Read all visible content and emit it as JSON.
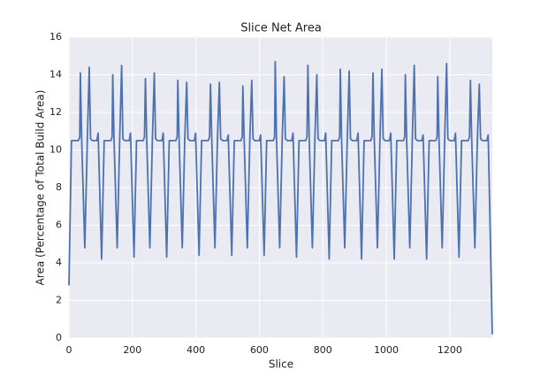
{
  "chart_data": {
    "type": "line",
    "title": "Slice Net Area",
    "xlabel": "Slice",
    "ylabel": "Area (Percentage of Total Build Area)",
    "color": "#4c72b0",
    "grid": true,
    "xlim": [
      0,
      1334
    ],
    "ylim": [
      0,
      16
    ],
    "xticks": [
      0,
      200,
      400,
      600,
      800,
      1000,
      1200
    ],
    "yticks": [
      0,
      2,
      4,
      6,
      8,
      10,
      12,
      14,
      16
    ],
    "x": [
      0,
      8,
      30,
      34,
      36,
      40,
      50,
      58,
      64,
      68,
      74,
      88,
      92,
      103,
      111,
      132,
      136,
      138,
      142,
      152,
      160,
      166,
      170,
      176,
      190,
      194,
      205,
      213,
      234,
      238,
      241,
      245,
      255,
      263,
      269,
      273,
      279,
      293,
      297,
      308,
      316,
      337,
      341,
      343,
      347,
      357,
      365,
      371,
      375,
      381,
      395,
      399,
      410,
      418,
      439,
      443,
      446,
      450,
      460,
      468,
      474,
      478,
      484,
      498,
      502,
      513,
      521,
      542,
      546,
      548,
      552,
      562,
      570,
      576,
      580,
      586,
      600,
      604,
      615,
      623,
      644,
      648,
      650,
      654,
      664,
      672,
      678,
      682,
      688,
      702,
      706,
      717,
      725,
      746,
      750,
      753,
      757,
      767,
      775,
      781,
      785,
      791,
      805,
      809,
      820,
      828,
      849,
      853,
      855,
      859,
      869,
      877,
      883,
      887,
      893,
      907,
      911,
      922,
      930,
      951,
      955,
      958,
      962,
      972,
      980,
      986,
      990,
      996,
      1010,
      1014,
      1025,
      1033,
      1054,
      1058,
      1060,
      1064,
      1074,
      1082,
      1088,
      1092,
      1098,
      1112,
      1116,
      1127,
      1135,
      1156,
      1160,
      1162,
      1166,
      1176,
      1184,
      1190,
      1194,
      1200,
      1214,
      1218,
      1229,
      1237,
      1258,
      1262,
      1265,
      1269,
      1279,
      1287,
      1293,
      1297,
      1303,
      1317,
      1321,
      1334
    ],
    "values": [
      2.8,
      10.5,
      10.5,
      10.7,
      14.1,
      10.6,
      4.8,
      10.6,
      14.4,
      10.6,
      10.5,
      10.5,
      10.9,
      4.2,
      10.5,
      10.5,
      10.7,
      14.0,
      10.6,
      4.8,
      10.6,
      14.5,
      10.6,
      10.5,
      10.5,
      10.9,
      4.3,
      10.5,
      10.5,
      10.7,
      13.8,
      10.6,
      4.8,
      10.6,
      14.1,
      10.6,
      10.5,
      10.5,
      10.9,
      4.3,
      10.5,
      10.5,
      10.7,
      13.7,
      10.6,
      4.8,
      10.6,
      13.6,
      10.6,
      10.5,
      10.5,
      10.9,
      4.4,
      10.5,
      10.5,
      10.7,
      13.5,
      10.6,
      4.8,
      10.6,
      13.6,
      10.6,
      10.5,
      10.5,
      10.8,
      4.4,
      10.5,
      10.5,
      10.7,
      13.4,
      10.6,
      4.8,
      10.6,
      13.7,
      10.6,
      10.5,
      10.5,
      10.8,
      4.4,
      10.5,
      10.5,
      10.7,
      14.7,
      10.6,
      4.8,
      10.6,
      13.9,
      10.6,
      10.5,
      10.5,
      10.9,
      4.3,
      10.5,
      10.5,
      10.7,
      14.5,
      10.6,
      4.8,
      10.6,
      14.0,
      10.6,
      10.5,
      10.5,
      10.9,
      4.2,
      10.5,
      10.5,
      10.7,
      14.3,
      10.6,
      4.8,
      10.6,
      14.2,
      10.6,
      10.5,
      10.5,
      10.9,
      4.2,
      10.5,
      10.5,
      10.7,
      14.1,
      10.6,
      4.8,
      10.6,
      14.3,
      10.6,
      10.5,
      10.5,
      10.9,
      4.2,
      10.5,
      10.5,
      10.7,
      14.0,
      10.6,
      4.8,
      10.6,
      14.5,
      10.6,
      10.5,
      10.5,
      10.8,
      4.2,
      10.5,
      10.5,
      10.7,
      13.9,
      10.6,
      4.8,
      10.6,
      14.6,
      10.6,
      10.5,
      10.5,
      10.9,
      4.3,
      10.5,
      10.5,
      10.7,
      13.7,
      10.6,
      4.8,
      10.6,
      13.5,
      10.6,
      10.5,
      10.5,
      10.8,
      0.2
    ]
  }
}
